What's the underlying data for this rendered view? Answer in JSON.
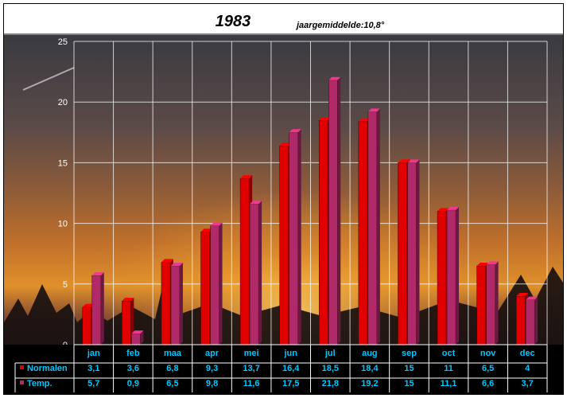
{
  "chart_data": {
    "type": "bar",
    "title": "1983",
    "subtitle": "jaargemiddelde:10,8°",
    "categories": [
      "jan",
      "feb",
      "maa",
      "apr",
      "mei",
      "jun",
      "jul",
      "aug",
      "sep",
      "oct",
      "nov",
      "dec"
    ],
    "ylim": [
      0,
      25
    ],
    "yticks": [
      0,
      5,
      10,
      15,
      20,
      25
    ],
    "grid": true,
    "series": [
      {
        "name": "Normalen",
        "color": "#e00000",
        "values": [
          3.1,
          3.6,
          6.8,
          9.3,
          13.7,
          16.4,
          18.5,
          18.4,
          15,
          11,
          6.5,
          4
        ],
        "labels": [
          "3,1",
          "3,6",
          "6,8",
          "9,3",
          "13,7",
          "16,4",
          "18,5",
          "18,4",
          "15",
          "11",
          "6,5",
          "4"
        ]
      },
      {
        "name": "Temp.",
        "color": "#b02a6a",
        "values": [
          5.7,
          0.9,
          6.5,
          9.8,
          11.6,
          17.5,
          21.8,
          19.2,
          15,
          11.1,
          6.6,
          3.7
        ],
        "labels": [
          "5,7",
          "0,9",
          "6,5",
          "9,8",
          "11,6",
          "17,5",
          "21,8",
          "19,2",
          "15",
          "11,1",
          "6,6",
          "3,7"
        ]
      }
    ],
    "data_table": true
  }
}
